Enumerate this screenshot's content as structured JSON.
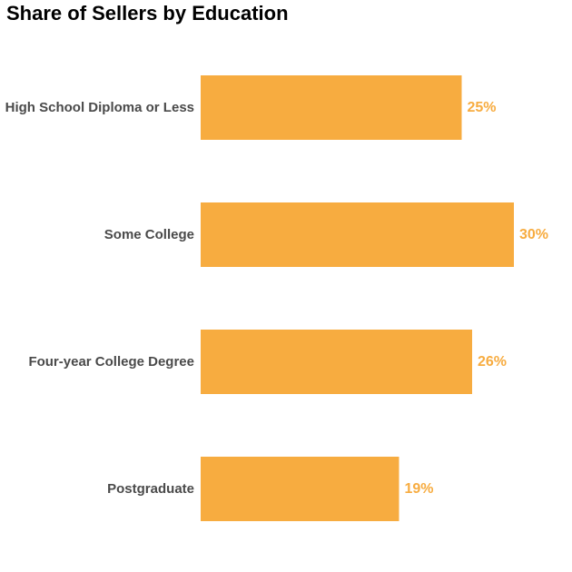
{
  "chart_data": {
    "type": "bar",
    "orientation": "horizontal",
    "title": "Share of Sellers by Education",
    "categories": [
      "High School Diploma or Less",
      "Some College",
      "Four-year College Degree",
      "Postgraduate"
    ],
    "values": [
      25,
      30,
      26,
      19
    ],
    "value_labels": [
      "25%",
      "30%",
      "26%",
      "19%"
    ],
    "unit": "%",
    "bar_color": "#F7AC40",
    "label_color": "#F7AC40",
    "category_label_color": "#4a4a4a",
    "grid": false,
    "legend": "none"
  }
}
